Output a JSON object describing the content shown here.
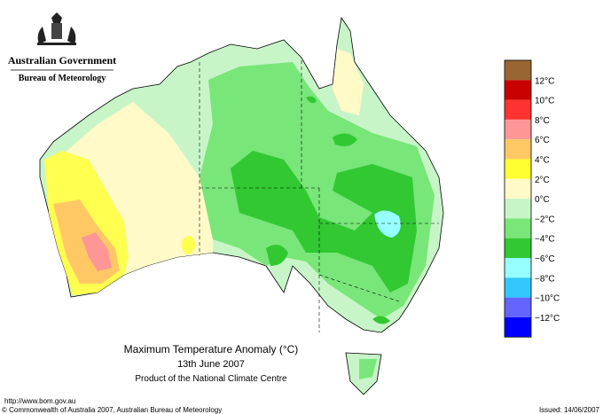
{
  "header": {
    "government": "Australian Government",
    "bureau": "Bureau of Meteorology"
  },
  "legend": {
    "labels": [
      "12°C",
      "10°C",
      "8°C",
      "6°C",
      "4°C",
      "2°C",
      "0°C",
      "−2°C",
      "−4°C",
      "−6°C",
      "−8°C",
      "−10°C",
      "−12°C"
    ]
  },
  "caption": {
    "title": "Maximum Temperature Anomaly (°C)",
    "date": "13th June 2007",
    "product": "Product of the National Climate Centre"
  },
  "footer": {
    "url": "http://www.bom.gov.au",
    "copyright": "© Commonwealth of Australia 2007, Australian Bureau of Meteorology",
    "issued": "Issued: 14/06/2007"
  }
}
